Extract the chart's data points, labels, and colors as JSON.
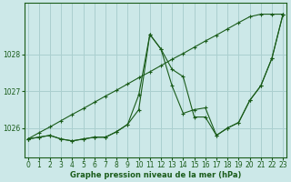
{
  "bg_color": "#cce8e8",
  "grid_color": "#aacfcf",
  "line_color": "#1a5c1a",
  "ylabel_ticks": [
    1026,
    1027,
    1028
  ],
  "xlabel_ticks": [
    0,
    1,
    2,
    3,
    4,
    5,
    6,
    7,
    8,
    9,
    10,
    11,
    12,
    13,
    14,
    15,
    16,
    17,
    18,
    19,
    20,
    21,
    22,
    23
  ],
  "xlabel_label": "Graphe pression niveau de la mer (hPa)",
  "ylim": [
    1025.2,
    1029.4
  ],
  "xlim": [
    -0.3,
    23.3
  ],
  "series_jagged1": [
    1025.7,
    1025.75,
    1025.8,
    1025.7,
    1025.65,
    1025.7,
    1025.75,
    1025.75,
    1025.9,
    1026.1,
    1026.9,
    1028.55,
    1028.15,
    1027.15,
    1026.4,
    1026.5,
    1026.55,
    1025.8,
    1026.0,
    1026.15,
    1026.75,
    1027.15,
    1027.9,
    1029.1
  ],
  "series_jagged2": [
    1025.7,
    1025.75,
    1025.8,
    1025.7,
    1025.65,
    1025.7,
    1025.75,
    1025.75,
    1025.9,
    1026.1,
    1026.5,
    1028.55,
    1028.15,
    1027.6,
    1027.4,
    1026.3,
    1026.3,
    1025.8,
    1026.0,
    1026.15,
    1026.75,
    1027.15,
    1027.9,
    1029.1
  ],
  "series_linear": [
    1025.7,
    1025.87,
    1026.03,
    1026.2,
    1026.37,
    1026.53,
    1026.7,
    1026.87,
    1027.03,
    1027.2,
    1027.37,
    1027.53,
    1027.7,
    1027.87,
    1028.03,
    1028.2,
    1028.37,
    1028.53,
    1028.7,
    1028.87,
    1029.03,
    1029.1,
    1029.1,
    1029.1
  ]
}
